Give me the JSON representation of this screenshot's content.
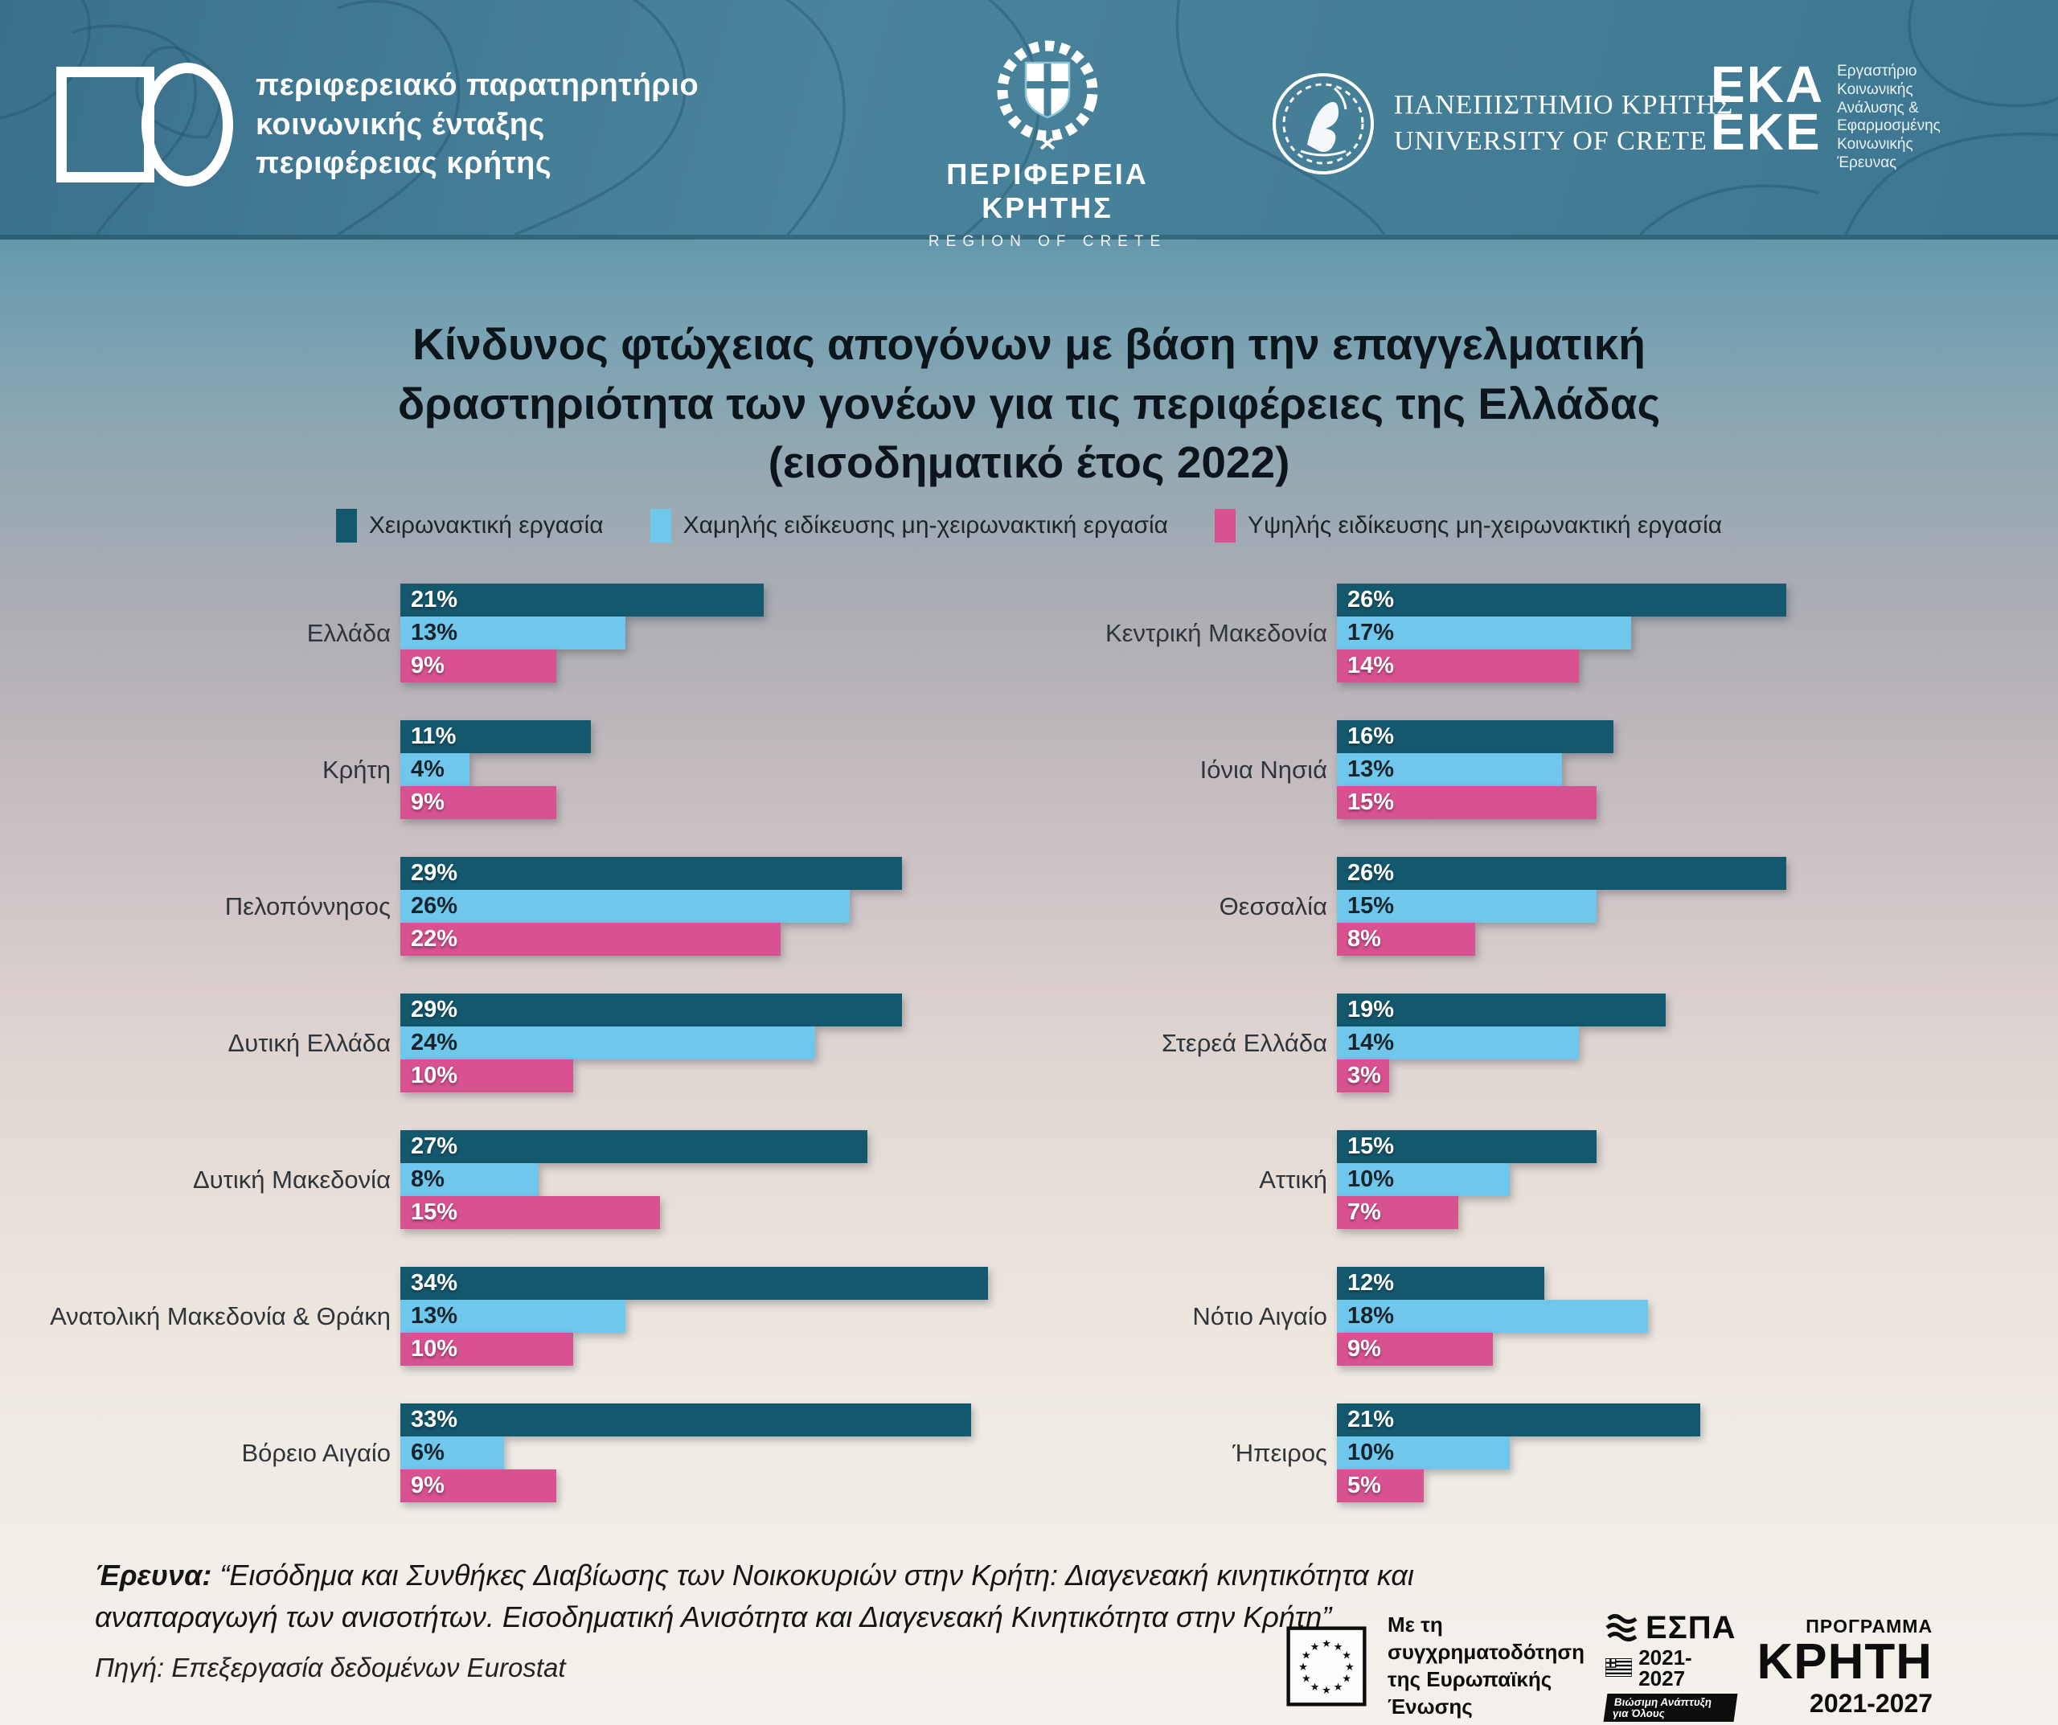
{
  "header": {
    "observatory_lines": [
      "περιφερειακό παρατηρητήριο",
      "κοινωνικής ένταξης",
      "περιφέρειας κρήτης"
    ],
    "region": {
      "name": "ΠΕΡΙΦΕΡΕΙΑ ΚΡΗΤΗΣ",
      "name_en": "REGION OF CRETE"
    },
    "university": {
      "name": "ΠΑΝΕΠΙΣΤΗΜΙΟ ΚΡΗΤΗΣ",
      "name_en": "UNIVERSITY OF CRETE"
    },
    "eka": {
      "big_lines": [
        "ΕΚΑ",
        "ΕΚΕ"
      ],
      "side_lines": [
        "Εργαστήριο",
        "Κοινωνικής",
        "Ανάλυσης &",
        "Εφαρμοσμένης",
        "Κοινωνικής",
        "Έρευνας"
      ]
    }
  },
  "title_lines": [
    "Κίνδυνος φτώχειας απογόνων με βάση την επαγγελματική",
    "δραστηριότητα των γονέων για τις περιφέρειες της Ελλάδας",
    "(εισοδηματικό έτος 2022)"
  ],
  "chart_data": {
    "type": "bar",
    "orientation": "horizontal",
    "unit": "%",
    "xmax": 35,
    "legend_position": "top",
    "series": [
      {
        "name": "Χειρωνακτική εργασία",
        "color": "#14586E"
      },
      {
        "name": "Χαμηλής ειδίκευσης μη-χειρωνακτική εργασία",
        "color": "#6FC7EB"
      },
      {
        "name": "Υψηλής ειδίκευσης μη-χειρωνακτική εργασία",
        "color": "#D85190"
      }
    ],
    "columns": {
      "left": [
        {
          "region": "Ελλάδα",
          "values": [
            21,
            13,
            9
          ]
        },
        {
          "region": "Κρήτη",
          "values": [
            11,
            4,
            9
          ]
        },
        {
          "region": "Πελοπόννησος",
          "values": [
            29,
            26,
            22
          ]
        },
        {
          "region": "Δυτική Ελλάδα",
          "values": [
            29,
            24,
            10
          ]
        },
        {
          "region": "Δυτική Μακεδονία",
          "values": [
            27,
            8,
            15
          ]
        },
        {
          "region": "Ανατολική Μακεδονία & Θράκη",
          "values": [
            34,
            13,
            10
          ]
        },
        {
          "region": "Βόρειο Αιγαίο",
          "values": [
            33,
            6,
            9
          ]
        }
      ],
      "right": [
        {
          "region": "Κεντρική Μακεδονία",
          "values": [
            26,
            17,
            14
          ]
        },
        {
          "region": "Ιόνια Νησιά",
          "values": [
            16,
            13,
            15
          ]
        },
        {
          "region": "Θεσσαλία",
          "values": [
            26,
            15,
            8
          ]
        },
        {
          "region": "Στερεά Ελλάδα",
          "values": [
            19,
            14,
            3
          ]
        },
        {
          "region": "Αττική",
          "values": [
            15,
            10,
            7
          ]
        },
        {
          "region": "Νότιο Αιγαίο",
          "values": [
            12,
            18,
            9
          ]
        },
        {
          "region": "Ήπειρος",
          "values": [
            21,
            10,
            5
          ]
        }
      ]
    }
  },
  "footer": {
    "research_label": "Έρευνα:",
    "research_text": "“Εισόδημα και Συνθήκες Διαβίωσης των Νοικοκυριών στην Κρήτη: Διαγενεακή κινητικότητα και αναπαραγωγή των ανισοτήτων. Εισοδηματική Ανισότητα και Διαγενεακή  Κινητικότητα στην Κρήτη”",
    "source": "Πηγή: Επεξεργασία δεδομένων Eurostat"
  },
  "funding": {
    "eu_text_lines": [
      "Με τη συγχρηματοδότηση",
      "της Ευρωπαϊκής Ένωσης"
    ],
    "espa": {
      "name": "ΕΣΠΑ",
      "years": "2021-2027",
      "banner": "Βιώσιμη Ανάπτυξη για Όλους"
    },
    "program": {
      "top": "ΠΡΟΓΡΑΜΜΑ",
      "name": "ΚΡΗΤΗ",
      "years": "2021-2027"
    }
  }
}
